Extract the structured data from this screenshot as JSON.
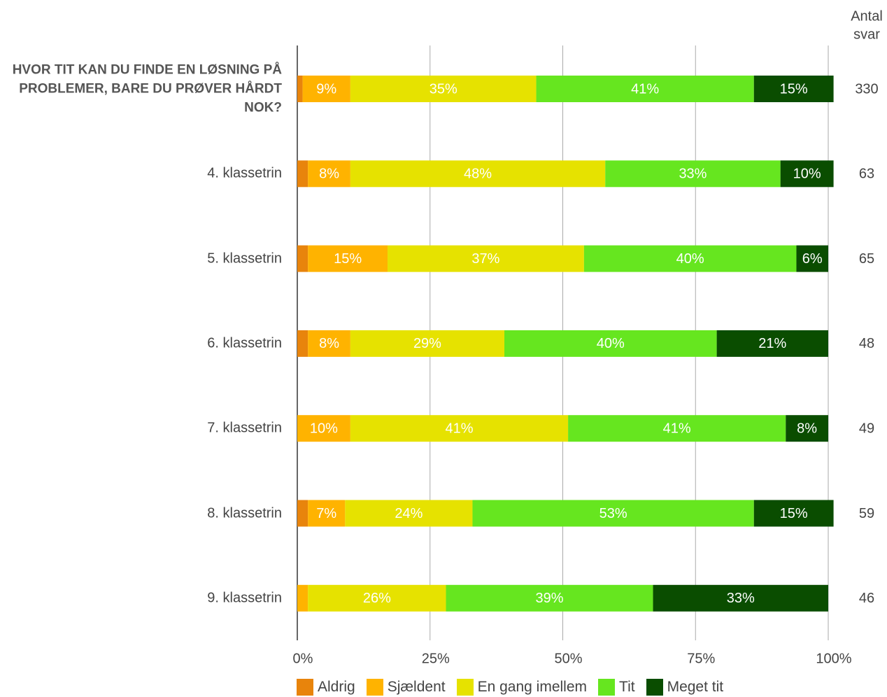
{
  "chart_data": {
    "type": "stacked_bar_horizontal",
    "categories": [
      "HVOR TIT KAN DU FINDE EN LØSNING PÅ PROBLEMER, BARE DU PRØVER HÅRDT NOK?",
      "4. klassetrin",
      "5. klassetrin",
      "6. klassetrin",
      "7. klassetrin",
      "8. klassetrin",
      "9. klassetrin"
    ],
    "series": [
      {
        "name": "Aldrig",
        "color": "#e8840c",
        "values": [
          1,
          2,
          2,
          2,
          0,
          2,
          0
        ],
        "value_labels": [
          null,
          null,
          null,
          null,
          null,
          null,
          null
        ]
      },
      {
        "name": "Sjældent",
        "color": "#ffb300",
        "values": [
          9,
          8,
          15,
          8,
          10,
          7,
          2
        ],
        "value_labels": [
          "9%",
          "8%",
          "15%",
          "8%",
          "10%",
          "7%",
          null
        ]
      },
      {
        "name": "En gang imellem",
        "color": "#e6e200",
        "values": [
          35,
          48,
          37,
          29,
          41,
          24,
          26
        ],
        "value_labels": [
          "35%",
          "48%",
          "37%",
          "29%",
          "41%",
          "24%",
          "26%"
        ]
      },
      {
        "name": "Tit",
        "color": "#66e61f",
        "values": [
          41,
          33,
          40,
          40,
          41,
          53,
          39
        ],
        "value_labels": [
          "41%",
          "33%",
          "40%",
          "40%",
          "41%",
          "53%",
          "39%"
        ]
      },
      {
        "name": "Meget tit",
        "color": "#0a4d00",
        "values": [
          15,
          10,
          6,
          21,
          8,
          15,
          33
        ],
        "value_labels": [
          "15%",
          "10%",
          "6%",
          "21%",
          "8%",
          "15%",
          "33%"
        ]
      }
    ],
    "n_title": [
      "Antal",
      "svar"
    ],
    "n": [
      330,
      63,
      65,
      48,
      49,
      59,
      46
    ],
    "xlim": [
      0,
      100
    ],
    "xticks": [
      {
        "value": 0,
        "label": "0%"
      },
      {
        "value": 25,
        "label": "25%"
      },
      {
        "value": 50,
        "label": "50%"
      },
      {
        "value": 75,
        "label": "75%"
      },
      {
        "value": 100,
        "label": "100%"
      }
    ],
    "grid": true
  }
}
